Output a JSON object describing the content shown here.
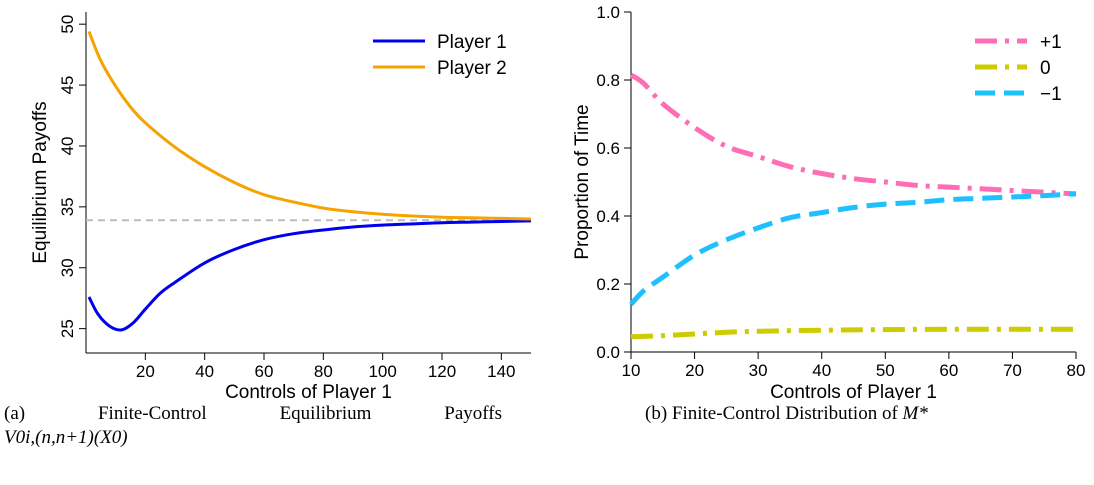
{
  "chart_data": [
    {
      "type": "line",
      "xlabel": "Controls of Player 1",
      "ylabel": "Equilibrium Payoffs",
      "xlim": [
        0,
        150
      ],
      "ylim": [
        23,
        51
      ],
      "xticks": [
        "20",
        "40",
        "60",
        "80",
        "100",
        "120",
        "140"
      ],
      "yticks": [
        "25",
        "30",
        "35",
        "40",
        "45",
        "50"
      ],
      "reference_line": {
        "y": 33.9,
        "style": "dashed",
        "color": "#bbbbbb"
      },
      "legend_position": "top-right",
      "series": [
        {
          "name": "Player 1",
          "color": "#0000ee",
          "x": [
            1,
            4,
            8,
            12,
            16,
            20,
            25,
            30,
            40,
            50,
            60,
            70,
            80,
            90,
            100,
            110,
            120,
            130,
            140,
            150
          ],
          "y": [
            27.6,
            26.2,
            25.2,
            24.9,
            25.5,
            26.6,
            27.9,
            28.8,
            30.4,
            31.5,
            32.3,
            32.8,
            33.1,
            33.35,
            33.5,
            33.6,
            33.7,
            33.75,
            33.8,
            33.85
          ]
        },
        {
          "name": "Player 2",
          "color": "#f5a300",
          "x": [
            1,
            5,
            10,
            15,
            20,
            30,
            40,
            50,
            60,
            70,
            80,
            90,
            100,
            110,
            120,
            130,
            140,
            150
          ],
          "y": [
            49.4,
            47.0,
            44.9,
            43.2,
            41.9,
            39.9,
            38.3,
            37.0,
            36.0,
            35.4,
            34.9,
            34.6,
            34.4,
            34.25,
            34.15,
            34.1,
            34.05,
            34.0
          ]
        }
      ],
      "caption": {
        "prefix": "(a)",
        "words": [
          "Finite-Control",
          "Equilibrium",
          "Payoffs"
        ],
        "formula": "V0i,(n,n+1)(X0)"
      }
    },
    {
      "type": "line",
      "xlabel": "Controls of Player 1",
      "ylabel": "Proportion of Time",
      "xlim": [
        10,
        80
      ],
      "ylim": [
        0,
        1
      ],
      "xticks": [
        "10",
        "20",
        "30",
        "40",
        "50",
        "60",
        "70",
        "80"
      ],
      "yticks": [
        "0.0",
        "0.2",
        "0.4",
        "0.6",
        "0.8",
        "1.0"
      ],
      "legend_position": "top-right",
      "series": [
        {
          "name": "+1",
          "color": "#ff6eb4",
          "style": "dashdot",
          "x": [
            10,
            12,
            15,
            20,
            25,
            30,
            35,
            40,
            45,
            50,
            55,
            60,
            65,
            70,
            75,
            80
          ],
          "y": [
            0.815,
            0.79,
            0.73,
            0.66,
            0.605,
            0.575,
            0.545,
            0.525,
            0.51,
            0.5,
            0.49,
            0.485,
            0.48,
            0.475,
            0.47,
            0.465
          ]
        },
        {
          "name": "0",
          "color": "#cccc00",
          "style": "dashdot",
          "x": [
            10,
            15,
            20,
            25,
            30,
            40,
            50,
            60,
            70,
            80
          ],
          "y": [
            0.045,
            0.048,
            0.053,
            0.058,
            0.061,
            0.064,
            0.066,
            0.067,
            0.067,
            0.067
          ]
        },
        {
          "name": "−1",
          "color": "#1ec0ff",
          "style": "dashed",
          "x": [
            10,
            12,
            15,
            20,
            25,
            30,
            35,
            40,
            45,
            50,
            55,
            60,
            65,
            70,
            75,
            80
          ],
          "y": [
            0.14,
            0.18,
            0.22,
            0.285,
            0.33,
            0.365,
            0.395,
            0.41,
            0.425,
            0.435,
            0.44,
            0.448,
            0.452,
            0.456,
            0.46,
            0.465
          ]
        }
      ],
      "caption": {
        "prefix": "(b)",
        "text": "Finite-Control Distribution of",
        "math": "M*"
      }
    }
  ]
}
